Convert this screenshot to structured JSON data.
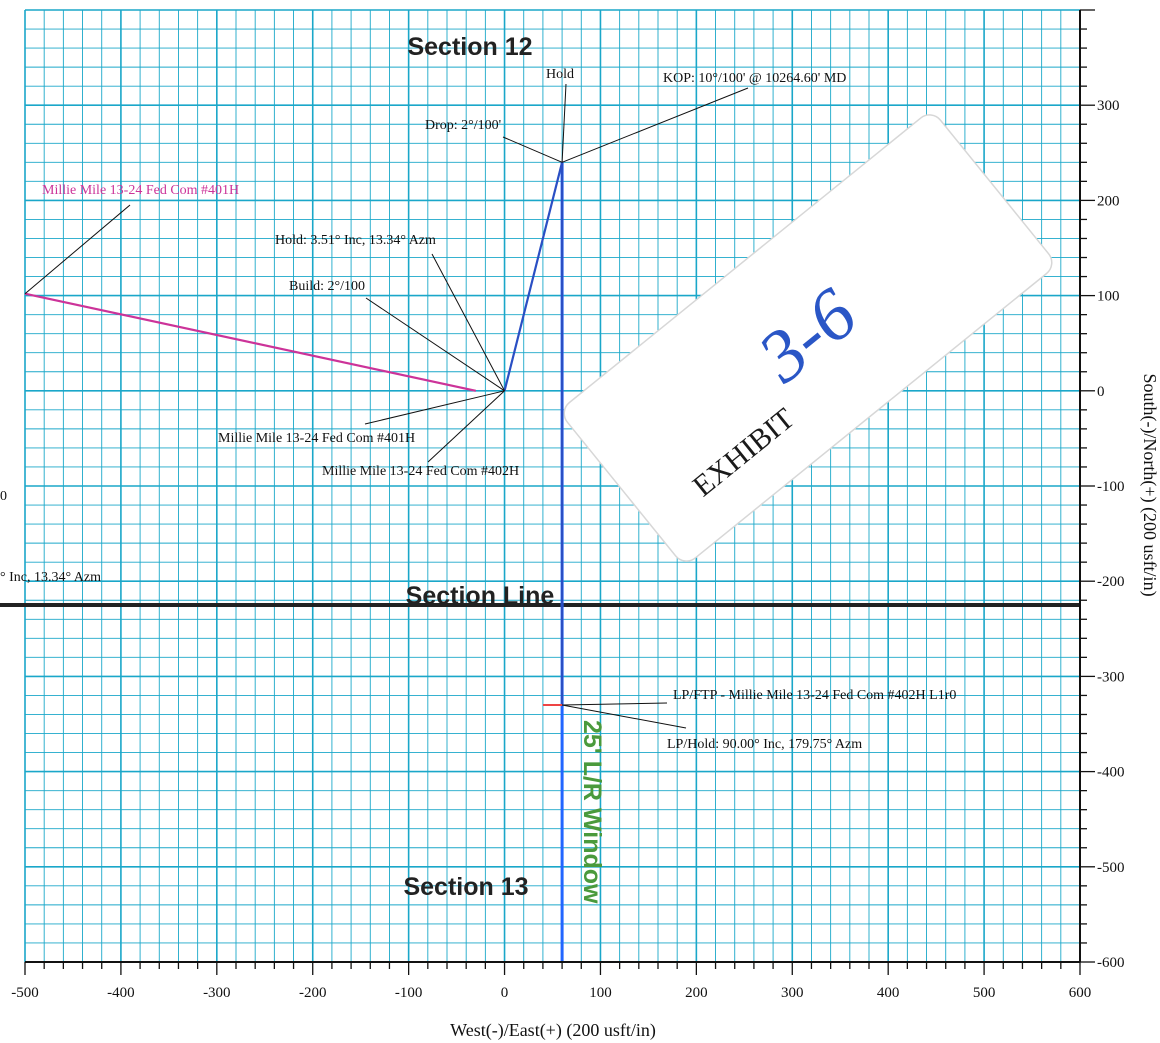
{
  "chart_data": {
    "type": "line",
    "xlabel": "West(-)/East(+) (200 usft/in)",
    "ylabel": "South(-)/North(+) (200 usft/in)",
    "xlim": [
      -500,
      600
    ],
    "ylim": [
      -600,
      400
    ],
    "x_ticks": [
      -500,
      -400,
      -300,
      -200,
      -100,
      0,
      100,
      200,
      300,
      400,
      500,
      600
    ],
    "x_tick_labels": [
      "-500",
      "-400",
      "-300",
      "-200",
      "-100",
      "0",
      "100",
      "200",
      "300",
      "400",
      "500",
      "600"
    ],
    "y_ticks": [
      300,
      200,
      100,
      0,
      -100,
      -200,
      -300,
      -400,
      -500,
      -600
    ],
    "y_tick_labels": [
      "300",
      "200",
      "100",
      "0",
      "-100",
      "-200",
      "-300",
      "-400",
      "-500",
      "-600"
    ],
    "grid": true,
    "colors": {
      "grid": "#1aa7c9",
      "well_402": "#2a4fc4",
      "well_401": "#cc3399",
      "lease_line": "#2266ff",
      "section_line": "#222222",
      "window_text": "#4a9a3c",
      "lp_stub": "#ee4444"
    },
    "series": [
      {
        "name": "Millie Mile 13-24 Fed Com #402H",
        "color": "#2a4fc4",
        "x": [
          0,
          60,
          60
        ],
        "y": [
          0,
          240,
          -330
        ]
      },
      {
        "name": "Millie Mile 13-24 Fed Com #401H",
        "color": "#cc3399",
        "x": [
          -30,
          -500
        ],
        "y": [
          0,
          102
        ]
      }
    ],
    "reference_lines": [
      {
        "label": "Section Line",
        "axis": "y",
        "value": -225
      },
      {
        "label": "25' L/R Window",
        "axis": "x",
        "value": 60
      }
    ],
    "lp_stub": {
      "x": [
        40,
        60
      ],
      "y": [
        -330,
        -330
      ]
    },
    "big_labels": {
      "section12": "Section 12",
      "section_line": "Section Line",
      "section13": "Section 13",
      "window": "25' L/R Window"
    },
    "annotations": {
      "kop": "KOP: 10°/100' @ 10264.60' MD",
      "hold_top": "Hold",
      "drop": "Drop: 2°/100'",
      "hold_inc": "Hold: 3.51° Inc, 13.34° Azm",
      "build": "Build: 2°/100",
      "well_401_pink": "Millie Mile 13-24 Fed Com #401H",
      "well_401_black": "Millie Mile 13-24 Fed Com #401H",
      "well_402": "Millie Mile 13-24 Fed Com #402H",
      "left_edge": "° Inc, 13.34° Azm",
      "left_edge_zero": "0",
      "lp_ftp": "LP/FTP - Millie Mile 13-24 Fed Com #402H L1r0",
      "lp_hold": "LP/Hold: 90.00° Inc, 179.75° Azm"
    }
  },
  "exhibit": {
    "label": "EXHIBIT",
    "number": "3-6"
  }
}
